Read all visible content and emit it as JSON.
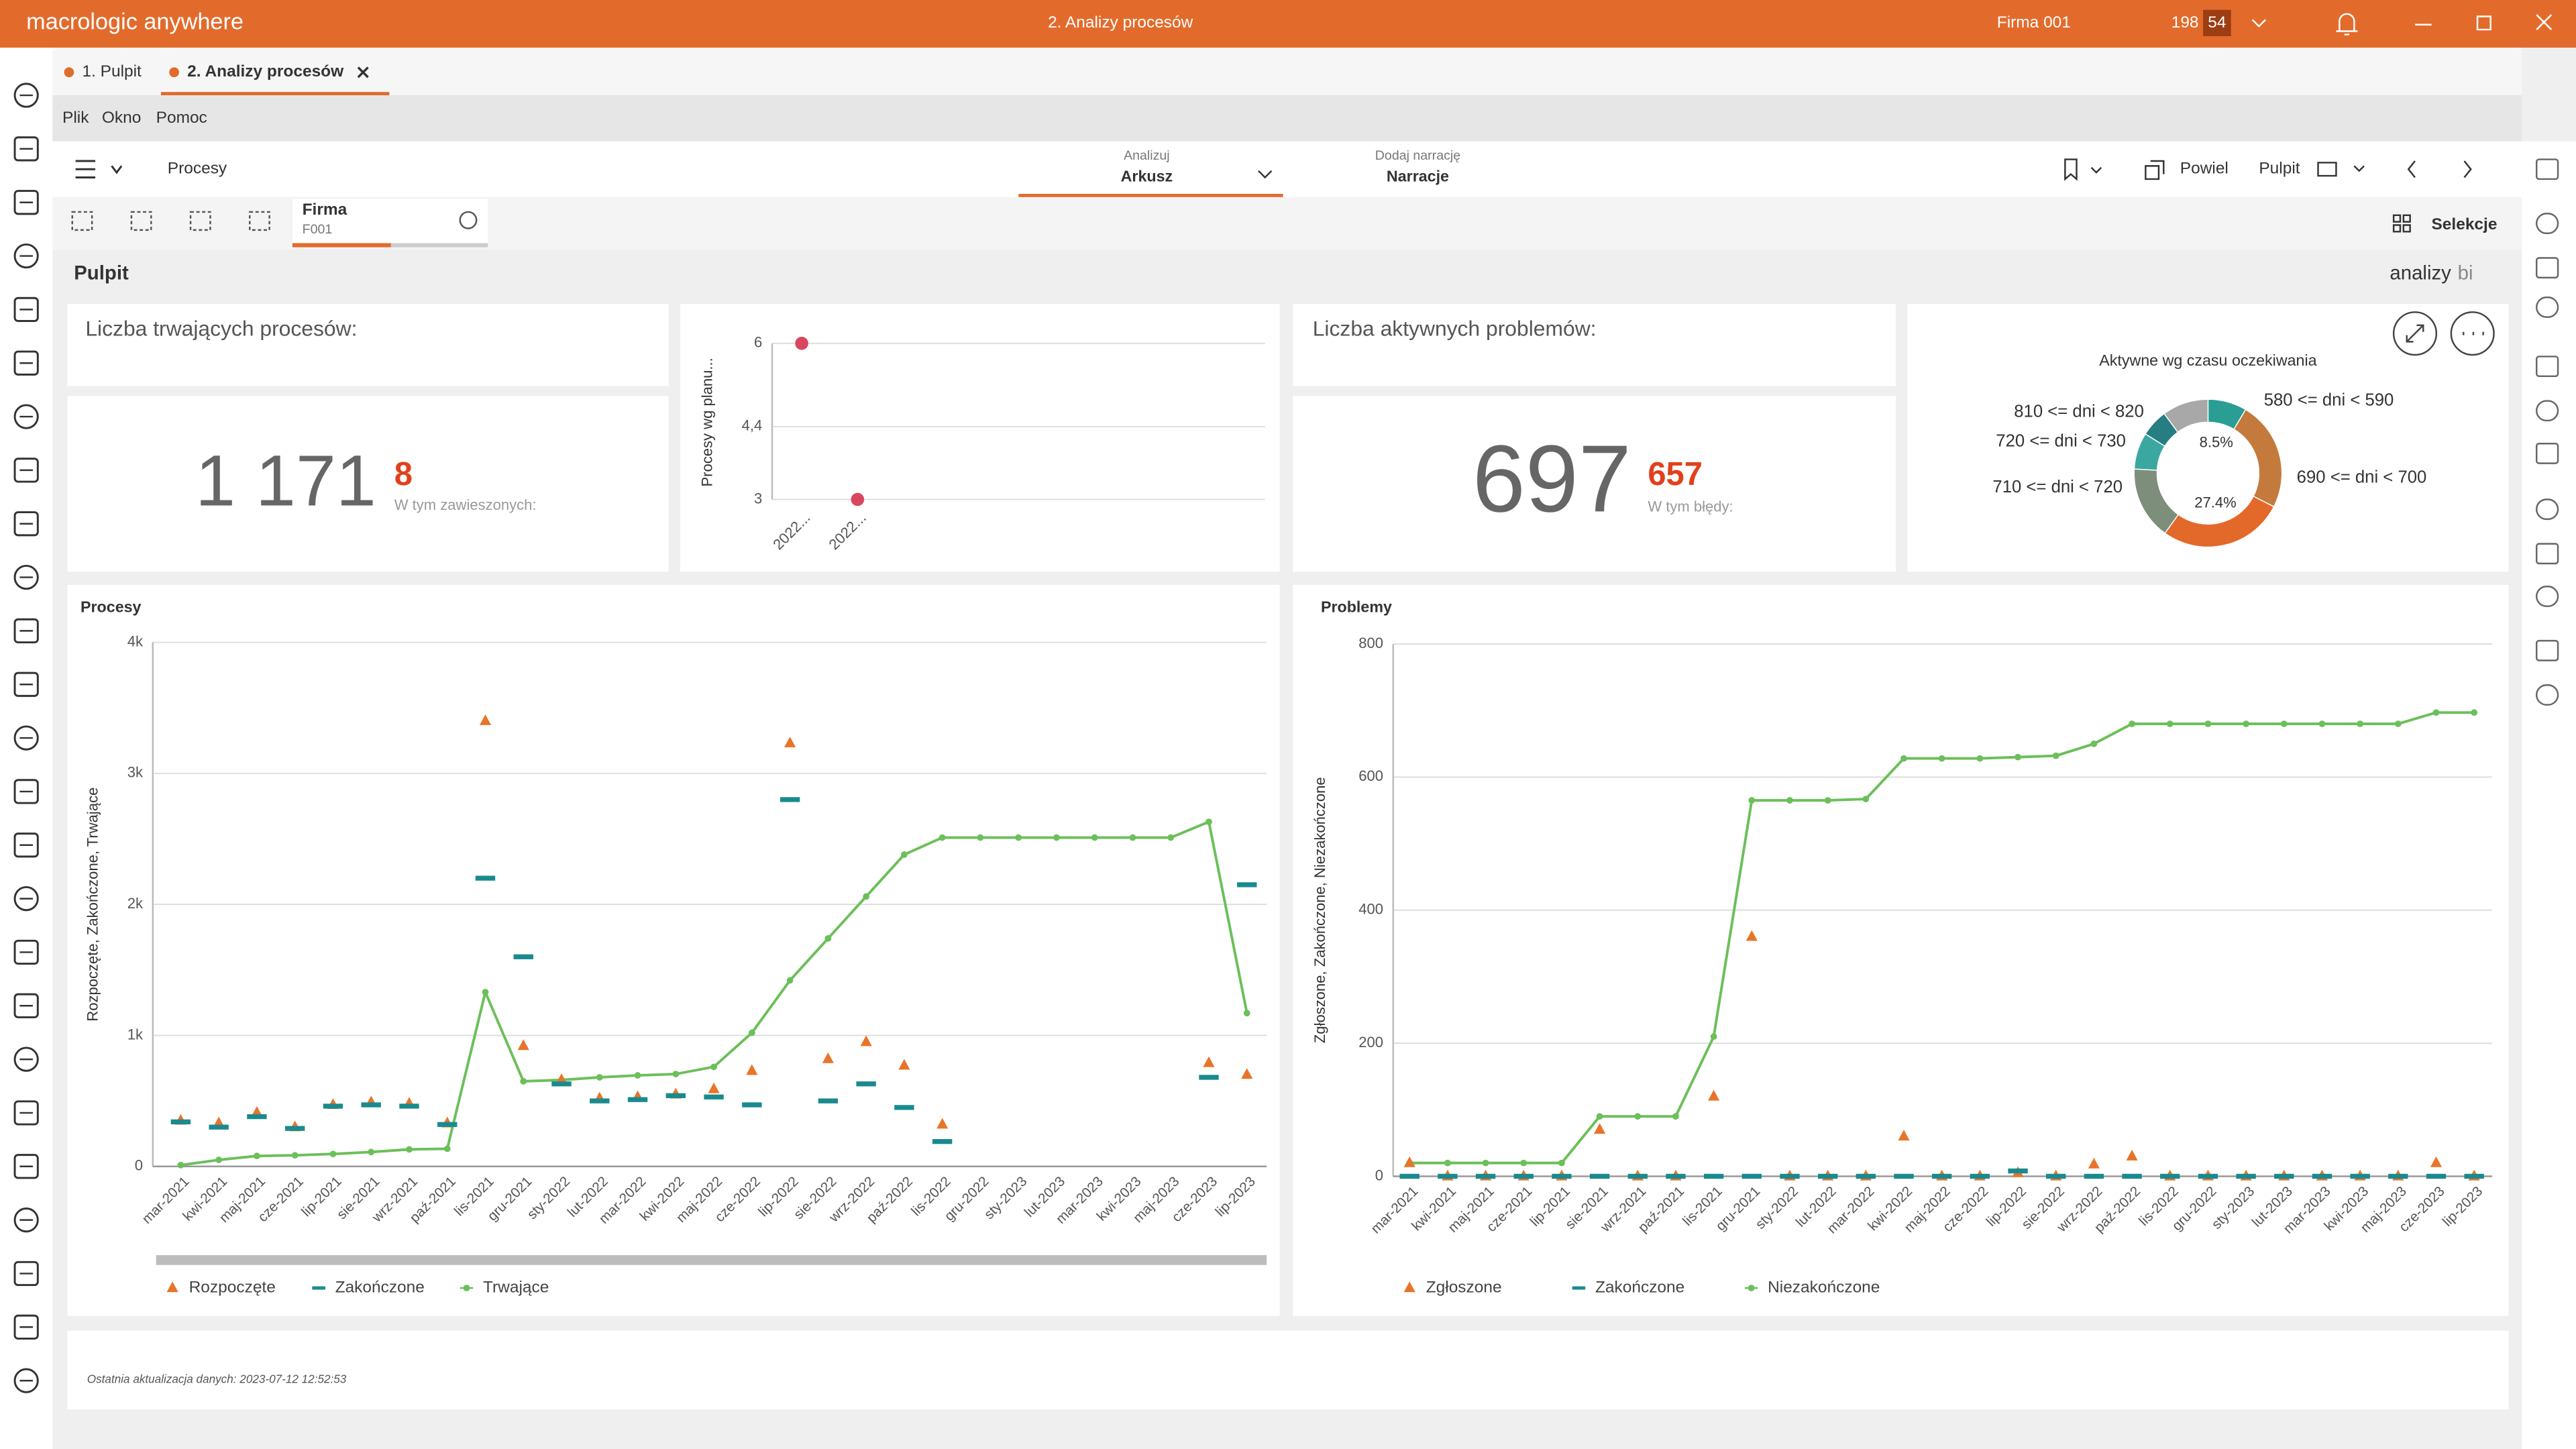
{
  "app": {
    "brand": "macrologic anywhere",
    "window_title": "2. Analizy procesów",
    "company": "Firma 001",
    "counter": "198",
    "badge": "54"
  },
  "tabs": [
    "1. Pulpit",
    "2. Analizy procesów"
  ],
  "menu": [
    "Plik",
    "Okno",
    "Pomoc"
  ],
  "toolbar": {
    "section": "Procesy",
    "analyze_label": "Analizuj",
    "analyze_value": "Arkusz",
    "narration_label": "Dodaj narrację",
    "narration_value": "Narracje",
    "duplicate": "Powiel",
    "dashboard": "Pulpit"
  },
  "filter": {
    "name": "Firma",
    "value": "F001",
    "selections": "Selekcje"
  },
  "page": {
    "title": "Pulpit",
    "brand": "analizy",
    "brand_suffix": "bi"
  },
  "kpis": [
    {
      "title": "Liczba trwających procesów:",
      "value": "1 171",
      "sub_value": 8,
      "sub_label": "W tym zawieszonych:"
    },
    {
      "title": "Liczba aktywnych problemów:",
      "value": 697,
      "sub_value": 657,
      "sub_label": "W tym błędy:"
    }
  ],
  "footer": "Ostatnia aktualizacja danych: 2023-07-12 12:52:53",
  "chart_data": [
    {
      "type": "scatter",
      "y_label": "Procesy wg planu...",
      "categories": [
        "2022...",
        "2022..."
      ],
      "values": [
        6,
        3
      ],
      "color": "#d9475e",
      "ylim": [
        3,
        6
      ],
      "yticks": [
        3,
        {
          "value": 4.4,
          "label": "4,4"
        },
        6
      ],
      "grid": true
    },
    {
      "type": "pie",
      "title": "Aktywne wg czasu oczekiwania",
      "categories": [
        "580 <= dni < 590",
        "690 <= dni < 700",
        null,
        "710 <= dni < 720",
        "720 <= dni < 730",
        "810 <= dni < 820",
        null
      ],
      "values": [
        8.5,
        24,
        27.4,
        16,
        8,
        6,
        10.1
      ],
      "value_labels": [
        "8.5%",
        null,
        "27.4%",
        null,
        null,
        null,
        null
      ],
      "colors": [
        "#2a9d95",
        "#c47a3c",
        "#e3692a",
        "#7d8f7a",
        "#3aa8a0",
        "#267e82",
        "#a8a8a8"
      ],
      "donut": true
    },
    {
      "type": "combo",
      "title": "Procesy",
      "y_label": "Rozpoczęte, Zakończone, Trwające",
      "categories": [
        "mar-2021",
        "kwi-2021",
        "maj-2021",
        "cze-2021",
        "lip-2021",
        "sie-2021",
        "wrz-2021",
        "paź-2021",
        "lis-2021",
        "gru-2021",
        "sty-2022",
        "lut-2022",
        "mar-2022",
        "kwi-2022",
        "maj-2022",
        "cze-2022",
        "lip-2022",
        "sie-2022",
        "wrz-2022",
        "paź-2022",
        "lis-2022",
        "gru-2022",
        "sty-2023",
        "lut-2023",
        "mar-2023",
        "kwi-2023",
        "maj-2023",
        "cze-2023",
        "lip-2023"
      ],
      "series": [
        {
          "name": "Rozpoczęte",
          "color": "#e8742a",
          "marker": "triangle",
          "values": [
            350,
            330,
            410,
            300,
            470,
            490,
            480,
            330,
            3400,
            920,
            660,
            520,
            530,
            550,
            590,
            730,
            3230,
            820,
            950,
            770,
            320,
            null,
            null,
            null,
            null,
            null,
            null,
            790,
            700
          ]
        },
        {
          "name": "Zakończone",
          "color": "#1a8a8e",
          "marker": "dash",
          "values": [
            340,
            300,
            380,
            290,
            460,
            470,
            460,
            320,
            2200,
            1600,
            630,
            500,
            510,
            540,
            530,
            470,
            2800,
            500,
            630,
            450,
            190,
            null,
            null,
            null,
            null,
            null,
            null,
            680,
            2150
          ]
        },
        {
          "name": "Trwające",
          "color": "#6cbf5a",
          "marker": "line",
          "values": [
            10,
            50,
            80,
            85,
            95,
            110,
            130,
            135,
            1330,
            650,
            660,
            680,
            695,
            705,
            760,
            1020,
            1420,
            1740,
            2060,
            2380,
            2510,
            2510,
            2510,
            2510,
            2510,
            2510,
            2510,
            2630,
            1170
          ]
        }
      ],
      "ylim": [
        0,
        4000
      ],
      "yticks": [
        0,
        {
          "value": 1000,
          "label": "1k"
        },
        {
          "value": 2000,
          "label": "2k"
        },
        {
          "value": 3000,
          "label": "3k"
        },
        {
          "value": 4000,
          "label": "4k"
        }
      ],
      "grid": true,
      "legend": "bottom"
    },
    {
      "type": "combo",
      "title": "Problemy",
      "y_label": "Zgłoszone, Zakończone, Niezakończone",
      "categories": [
        "mar-2021",
        "kwi-2021",
        "maj-2021",
        "cze-2021",
        "lip-2021",
        "sie-2021",
        "wrz-2021",
        "paź-2021",
        "lis-2021",
        "gru-2021",
        "sty-2022",
        "lut-2022",
        "mar-2022",
        "kwi-2022",
        "maj-2022",
        "cze-2022",
        "lip-2022",
        "sie-2022",
        "wrz-2022",
        "paź-2022",
        "lis-2022",
        "gru-2022",
        "sty-2023",
        "lut-2023",
        "mar-2023",
        "kwi-2023",
        "maj-2023",
        "cze-2023",
        "lip-2023"
      ],
      "series": [
        {
          "name": "Zgłoszone",
          "color": "#e8742a",
          "marker": "triangle",
          "values": [
            20,
            0,
            0,
            0,
            0,
            70,
            0,
            0,
            120,
            360,
            0,
            0,
            0,
            60,
            0,
            0,
            5,
            0,
            18,
            30,
            0,
            0,
            0,
            0,
            0,
            0,
            0,
            20,
            0
          ]
        },
        {
          "name": "Zakończone",
          "color": "#1a8a8e",
          "marker": "dash",
          "values": [
            0,
            0,
            0,
            0,
            0,
            0,
            0,
            0,
            0,
            0,
            0,
            0,
            0,
            0,
            0,
            0,
            8,
            0,
            0,
            0,
            0,
            0,
            0,
            0,
            0,
            0,
            0,
            0,
            0
          ]
        },
        {
          "name": "Niezakończone",
          "color": "#6cbf5a",
          "marker": "line",
          "values": [
            20,
            20,
            20,
            20,
            20,
            90,
            90,
            90,
            210,
            565,
            565,
            565,
            567,
            628,
            628,
            628,
            630,
            632,
            650,
            680,
            680,
            680,
            680,
            680,
            680,
            680,
            680,
            697,
            697
          ]
        }
      ],
      "ylim": [
        0,
        800
      ],
      "yticks": [
        0,
        200,
        400,
        600,
        800
      ],
      "grid": true,
      "legend": "bottom"
    }
  ]
}
